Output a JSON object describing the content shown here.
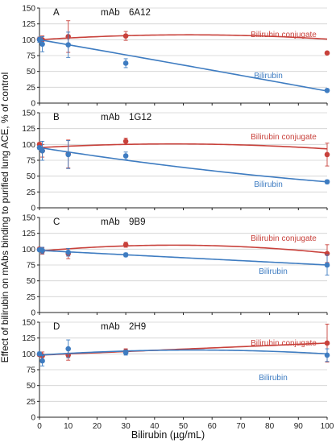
{
  "ylabel": "Effect of bilirubin on mAbs binding to purified lung ACE, % of control",
  "xlabel": "Bilirubin (µg/mL)",
  "colors": {
    "conjugate": "#c8413b",
    "bilirubin": "#3e7cc1",
    "axis": "#222222",
    "grid": "#d0d0d0"
  },
  "chart_data": [
    {
      "type": "scatter",
      "panel": "A",
      "antibody": "mAb",
      "clone": "6A12",
      "ylim": [
        0,
        150
      ],
      "yticks": [
        0,
        25,
        50,
        75,
        100,
        125,
        150
      ],
      "xlim": [
        0,
        100
      ],
      "xticks": [
        0,
        10,
        20,
        30,
        40,
        50,
        60,
        70,
        80,
        90,
        100
      ],
      "show_xticks": false,
      "series": [
        {
          "name": "Bilirubin conjugate",
          "color_key": "conjugate",
          "x": [
            0,
            1,
            10,
            30,
            100
          ],
          "y": [
            101,
            100,
            105,
            106,
            79
          ],
          "err": [
            3,
            6,
            25,
            7,
            2
          ],
          "fit": [
            100,
            0.3,
            -0.0029
          ]
        },
        {
          "name": "Bilirubin",
          "color_key": "bilirubin",
          "x": [
            0,
            1,
            10,
            30,
            100
          ],
          "y": [
            100,
            93,
            92,
            63,
            20
          ],
          "err": [
            4,
            12,
            20,
            7,
            2
          ],
          "fit": [
            100,
            -0.79,
            -0.0002
          ]
        }
      ]
    },
    {
      "type": "scatter",
      "panel": "B",
      "antibody": "mAb",
      "clone": "1G12",
      "ylim": [
        0,
        150
      ],
      "yticks": [
        0,
        25,
        50,
        75,
        100,
        125,
        150
      ],
      "xlim": [
        0,
        100
      ],
      "xticks": [
        0,
        10,
        20,
        30,
        40,
        50,
        60,
        70,
        80,
        90,
        100
      ],
      "show_xticks": false,
      "series": [
        {
          "name": "Bilirubin conjugate",
          "color_key": "conjugate",
          "x": [
            0,
            1,
            10,
            30,
            100
          ],
          "y": [
            100,
            90,
            85,
            105,
            84
          ],
          "err": [
            3,
            10,
            22,
            5,
            18
          ],
          "fit": [
            95,
            0.25,
            -0.0027
          ]
        },
        {
          "name": "Bilirubin",
          "color_key": "bilirubin",
          "x": [
            0,
            1,
            10,
            30,
            100
          ],
          "y": [
            95,
            90,
            84,
            82,
            41
          ],
          "err": [
            3,
            15,
            22,
            6,
            3
          ],
          "fit": [
            95,
            -0.71,
            0.0017
          ]
        }
      ]
    },
    {
      "type": "scatter",
      "panel": "C",
      "antibody": "mAb",
      "clone": "9B9",
      "ylim": [
        0,
        150
      ],
      "yticks": [
        0,
        25,
        50,
        75,
        100,
        125,
        150
      ],
      "xlim": [
        0,
        100
      ],
      "xticks": [
        0,
        10,
        20,
        30,
        40,
        50,
        60,
        70,
        80,
        90,
        100
      ],
      "show_xticks": false,
      "series": [
        {
          "name": "Bilirubin conjugate",
          "color_key": "conjugate",
          "x": [
            0,
            1,
            10,
            30,
            100
          ],
          "y": [
            100,
            97,
            93,
            107,
            93
          ],
          "err": [
            3,
            5,
            8,
            4,
            14
          ],
          "fit": [
            97,
            0.4,
            -0.0043
          ]
        },
        {
          "name": "Bilirubin",
          "color_key": "bilirubin",
          "x": [
            0,
            1,
            10,
            30,
            100
          ],
          "y": [
            99,
            98,
            95,
            91,
            75
          ],
          "err": [
            2,
            5,
            6,
            3,
            16
          ],
          "fit": [
            98,
            -0.23,
            0
          ]
        }
      ]
    },
    {
      "type": "scatter",
      "panel": "D",
      "antibody": "mAb",
      "clone": "2H9",
      "ylim": [
        0,
        150
      ],
      "yticks": [
        0,
        25,
        50,
        75,
        100,
        125,
        150
      ],
      "xlim": [
        0,
        100
      ],
      "xticks": [
        0,
        10,
        20,
        30,
        40,
        50,
        60,
        70,
        80,
        90,
        100
      ],
      "show_xticks": true,
      "series": [
        {
          "name": "Bilirubin conjugate",
          "color_key": "conjugate",
          "x": [
            0,
            1,
            10,
            30,
            100
          ],
          "y": [
            99,
            97,
            98,
            104,
            117
          ],
          "err": [
            3,
            6,
            8,
            4,
            30
          ],
          "fit": [
            98,
            0.19,
            0
          ]
        },
        {
          "name": "Bilirubin",
          "color_key": "bilirubin",
          "x": [
            0,
            1,
            10,
            30,
            100
          ],
          "y": [
            100,
            89,
            108,
            102,
            98
          ],
          "err": [
            3,
            8,
            14,
            4,
            10
          ],
          "fit": [
            98,
            0.3,
            -0.0028
          ]
        }
      ]
    }
  ]
}
